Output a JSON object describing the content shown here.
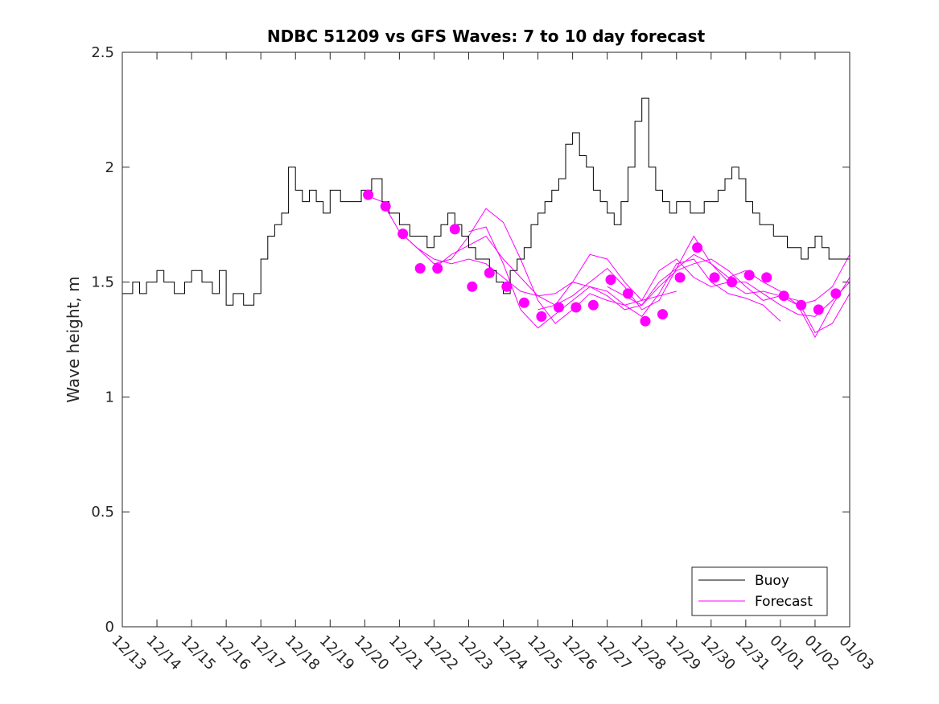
{
  "chart_data": {
    "type": "line",
    "title": "NDBC 51209 vs GFS Waves: 7 to 10 day forecast",
    "xlabel": "",
    "ylabel": "Wave height, m",
    "xlim": [
      0,
      21
    ],
    "ylim": [
      0,
      2.5
    ],
    "y_ticks": [
      0,
      0.5,
      1,
      1.5,
      2,
      2.5
    ],
    "y_tick_labels": [
      "0",
      "0.5",
      "1",
      "1.5",
      "2",
      "2.5"
    ],
    "x_ticks": [
      0,
      1,
      2,
      3,
      4,
      5,
      6,
      7,
      8,
      9,
      10,
      11,
      12,
      13,
      14,
      15,
      16,
      17,
      18,
      19,
      20,
      21
    ],
    "x_tick_labels": [
      "12/13",
      "12/14",
      "12/15",
      "12/16",
      "12/17",
      "12/18",
      "12/19",
      "12/20",
      "12/21",
      "12/22",
      "12/23",
      "12/24",
      "12/25",
      "12/26",
      "12/27",
      "12/28",
      "12/29",
      "12/30",
      "12/31",
      "01/01",
      "01/02",
      "01/03"
    ],
    "legend": {
      "position": "bottom-right",
      "entries": [
        "Buoy",
        "Forecast"
      ]
    },
    "colors": {
      "buoy": "#000000",
      "forecast": "#ff00ff"
    },
    "series": [
      {
        "name": "Buoy",
        "x": [
          0,
          0.3,
          0.5,
          0.7,
          1.0,
          1.2,
          1.5,
          1.8,
          2.0,
          2.3,
          2.6,
          2.8,
          3.0,
          3.2,
          3.5,
          3.8,
          4.0,
          4.2,
          4.4,
          4.6,
          4.8,
          5.0,
          5.2,
          5.4,
          5.6,
          5.8,
          6.0,
          6.3,
          6.6,
          6.9,
          7.2,
          7.5,
          7.7,
          8.0,
          8.3,
          8.6,
          8.8,
          9.0,
          9.2,
          9.4,
          9.6,
          9.8,
          10.0,
          10.2,
          10.4,
          10.6,
          10.8,
          11.0,
          11.2,
          11.4,
          11.6,
          11.8,
          12.0,
          12.2,
          12.4,
          12.6,
          12.8,
          13.0,
          13.2,
          13.4,
          13.6,
          13.8,
          14.0,
          14.2,
          14.4,
          14.6,
          14.8,
          15.0,
          15.2,
          15.4,
          15.6,
          15.8,
          16.0,
          16.2,
          16.4,
          16.6,
          16.8,
          17.0,
          17.2,
          17.4,
          17.6,
          17.8,
          18.0,
          18.2,
          18.4,
          18.6,
          18.8,
          19.0,
          19.2,
          19.4,
          19.6,
          19.8,
          20.0,
          20.2,
          20.4,
          20.6,
          20.8,
          21.0
        ],
        "y": [
          1.45,
          1.5,
          1.45,
          1.5,
          1.55,
          1.5,
          1.45,
          1.5,
          1.55,
          1.5,
          1.45,
          1.55,
          1.4,
          1.45,
          1.4,
          1.45,
          1.6,
          1.7,
          1.75,
          1.8,
          2.0,
          1.9,
          1.85,
          1.9,
          1.85,
          1.8,
          1.9,
          1.85,
          1.85,
          1.9,
          1.95,
          1.85,
          1.8,
          1.75,
          1.7,
          1.7,
          1.65,
          1.7,
          1.75,
          1.8,
          1.75,
          1.7,
          1.65,
          1.6,
          1.6,
          1.55,
          1.5,
          1.45,
          1.55,
          1.6,
          1.65,
          1.75,
          1.8,
          1.85,
          1.9,
          1.95,
          2.1,
          2.15,
          2.05,
          2.0,
          1.9,
          1.85,
          1.8,
          1.75,
          1.85,
          2.0,
          2.2,
          2.3,
          2.0,
          1.9,
          1.85,
          1.8,
          1.85,
          1.85,
          1.8,
          1.8,
          1.85,
          1.85,
          1.9,
          1.95,
          2.0,
          1.95,
          1.85,
          1.8,
          1.75,
          1.75,
          1.7,
          1.7,
          1.65,
          1.65,
          1.6,
          1.65,
          1.7,
          1.65,
          1.6,
          1.6,
          1.6,
          1.6
        ]
      },
      {
        "name": "Forecast",
        "markers_x": [
          7.1,
          7.6,
          8.1,
          8.6,
          9.1,
          9.6,
          10.1,
          10.6,
          11.1,
          11.6,
          12.1,
          12.6,
          13.1,
          13.6,
          14.1,
          14.6,
          15.1,
          15.6,
          16.1,
          16.6,
          17.1,
          17.6,
          18.1,
          18.6,
          19.1,
          19.6,
          20.1,
          20.6
        ],
        "markers_y": [
          1.88,
          1.83,
          1.71,
          1.56,
          1.56,
          1.73,
          1.48,
          1.54,
          1.48,
          1.41,
          1.35,
          1.39,
          1.39,
          1.4,
          1.51,
          1.45,
          1.33,
          1.36,
          1.52,
          1.65,
          1.52,
          1.5,
          1.53,
          1.52,
          1.44,
          1.4,
          1.38,
          1.45
        ]
      }
    ],
    "forecast_runs": [
      {
        "x": [
          7.0,
          7.5,
          8.0,
          8.5,
          9.0,
          9.5,
          10.0,
          10.5,
          11.0,
          11.5,
          12.0,
          12.5,
          13.0,
          13.5,
          14.0,
          14.5,
          15.0,
          15.5,
          16.0
        ],
        "y": [
          1.88,
          1.85,
          1.72,
          1.65,
          1.6,
          1.58,
          1.6,
          1.58,
          1.52,
          1.46,
          1.44,
          1.45,
          1.5,
          1.48,
          1.46,
          1.4,
          1.42,
          1.44,
          1.46
        ]
      },
      {
        "x": [
          8.0,
          8.5,
          9.0,
          9.5,
          10.0,
          10.5,
          11.0,
          11.5,
          12.0,
          12.5,
          13.0,
          13.5,
          14.0,
          14.5,
          15.0,
          15.5,
          16.0,
          16.5,
          17.0,
          17.5,
          18.0,
          18.5,
          19.0
        ],
        "y": [
          1.72,
          1.65,
          1.58,
          1.6,
          1.7,
          1.82,
          1.76,
          1.6,
          1.42,
          1.32,
          1.38,
          1.45,
          1.42,
          1.4,
          1.35,
          1.45,
          1.58,
          1.6,
          1.5,
          1.45,
          1.43,
          1.4,
          1.33
        ]
      },
      {
        "x": [
          9.0,
          9.5,
          10.0,
          10.5,
          11.0,
          11.5,
          12.0,
          12.5,
          13.0,
          13.5,
          14.0,
          14.5,
          15.0,
          15.5,
          16.0,
          16.5,
          17.0,
          17.5,
          18.0,
          18.5,
          19.0,
          19.5,
          20.0,
          20.5,
          21.0
        ],
        "y": [
          1.56,
          1.62,
          1.66,
          1.7,
          1.6,
          1.52,
          1.44,
          1.4,
          1.5,
          1.62,
          1.6,
          1.5,
          1.42,
          1.55,
          1.6,
          1.52,
          1.48,
          1.5,
          1.5,
          1.45,
          1.4,
          1.36,
          1.35,
          1.42,
          1.5
        ]
      },
      {
        "x": [
          10.0,
          10.5,
          11.0,
          11.5,
          12.0,
          12.5,
          13.0,
          13.5,
          14.0,
          14.5,
          15.0,
          15.5,
          16.0,
          16.5,
          17.0,
          17.5,
          18.0,
          18.5,
          19.0,
          19.5,
          20.0,
          20.5,
          21.0
        ],
        "y": [
          1.72,
          1.74,
          1.58,
          1.38,
          1.3,
          1.36,
          1.42,
          1.48,
          1.44,
          1.38,
          1.4,
          1.5,
          1.56,
          1.62,
          1.58,
          1.5,
          1.45,
          1.46,
          1.44,
          1.42,
          1.28,
          1.32,
          1.45
        ]
      },
      {
        "x": [
          12.0,
          12.5,
          13.0,
          13.5,
          14.0,
          14.5,
          15.0,
          15.5,
          16.0,
          16.5,
          17.0,
          17.5,
          18.0,
          18.5,
          19.0,
          19.5,
          20.0,
          20.5,
          21.0
        ],
        "y": [
          1.38,
          1.4,
          1.44,
          1.5,
          1.56,
          1.48,
          1.38,
          1.42,
          1.56,
          1.7,
          1.58,
          1.52,
          1.55,
          1.5,
          1.46,
          1.4,
          1.26,
          1.4,
          1.52
        ]
      },
      {
        "x": [
          14.0,
          14.5,
          15.0,
          15.5,
          16.0,
          16.5,
          17.0,
          17.5,
          18.0,
          18.5,
          19.0,
          19.5,
          20.0,
          20.5,
          21.0
        ],
        "y": [
          1.48,
          1.44,
          1.4,
          1.48,
          1.55,
          1.58,
          1.6,
          1.55,
          1.48,
          1.42,
          1.44,
          1.4,
          1.42,
          1.48,
          1.62
        ]
      }
    ]
  }
}
